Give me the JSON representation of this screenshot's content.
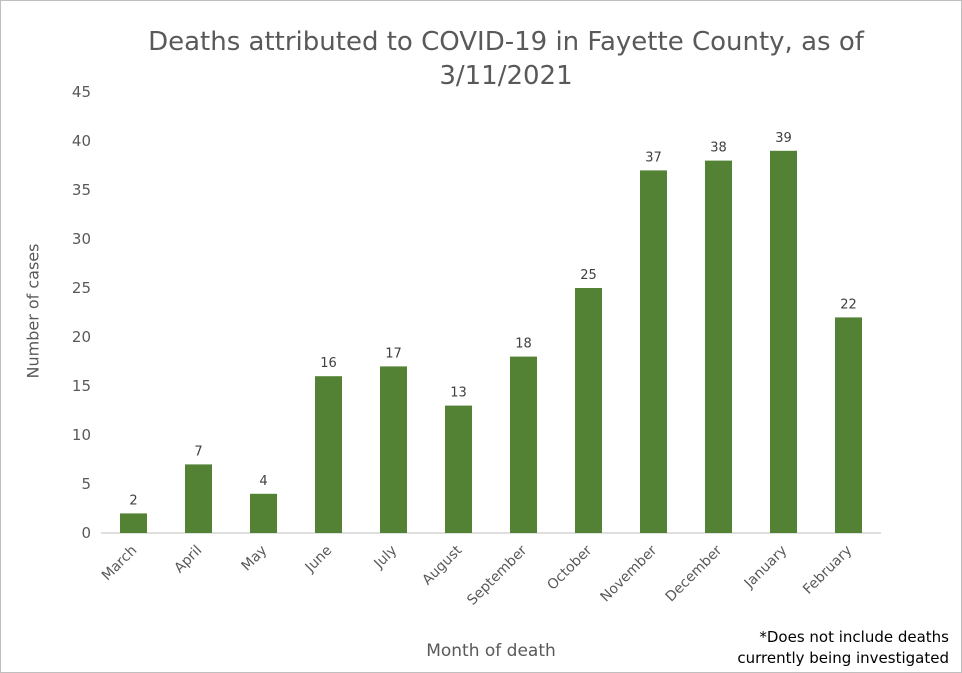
{
  "colors": {
    "bar": "#548235",
    "axis": "#bfbfbf",
    "text": "#595959"
  },
  "chart_data": {
    "type": "bar",
    "title": "Deaths attributed to COVID-19 in Fayette County, as of 3/11/2021",
    "xlabel": "Month of death",
    "ylabel": "Number of cases",
    "categories": [
      "March",
      "April",
      "May",
      "June",
      "July",
      "August",
      "September",
      "October",
      "November",
      "December",
      "January",
      "February"
    ],
    "values": [
      2,
      7,
      4,
      16,
      17,
      13,
      18,
      25,
      37,
      38,
      39,
      22
    ],
    "ylim": [
      0,
      45
    ],
    "yticks": [
      0,
      5,
      10,
      15,
      20,
      25,
      30,
      35,
      40,
      45
    ],
    "grid": false,
    "data_labels": true,
    "footnote": [
      "*Does not include deaths",
      "currently being investigated"
    ]
  }
}
